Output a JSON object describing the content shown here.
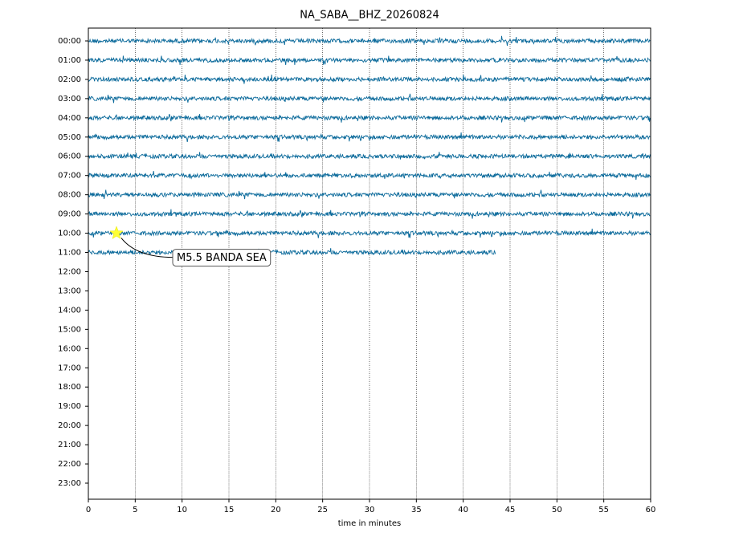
{
  "chart_data": {
    "type": "dayplot",
    "title": "NA_SABA__BHZ_20260824",
    "xlabel": "time in minutes",
    "categories": [
      "00:00",
      "01:00",
      "02:00",
      "03:00",
      "04:00",
      "05:00",
      "06:00",
      "07:00",
      "08:00",
      "09:00",
      "10:00",
      "11:00",
      "12:00",
      "13:00",
      "14:00",
      "15:00",
      "16:00",
      "17:00",
      "18:00",
      "19:00",
      "20:00",
      "21:00",
      "22:00",
      "23:00"
    ],
    "trace_ends": [
      60,
      60,
      60,
      60,
      60,
      60,
      60,
      60,
      60,
      60,
      60,
      43.5,
      null,
      null,
      null,
      null,
      null,
      null,
      null,
      null,
      null,
      null,
      null,
      null
    ],
    "color": "#0b6a9b",
    "xlim": [
      0,
      60
    ],
    "xticks": [
      0,
      5,
      10,
      15,
      20,
      25,
      30,
      35,
      40,
      45,
      50,
      55,
      60
    ],
    "grid": true,
    "annotations": [
      {
        "text": "M5.5 BANDA SEA",
        "x": 3,
        "row": 10
      }
    ]
  }
}
